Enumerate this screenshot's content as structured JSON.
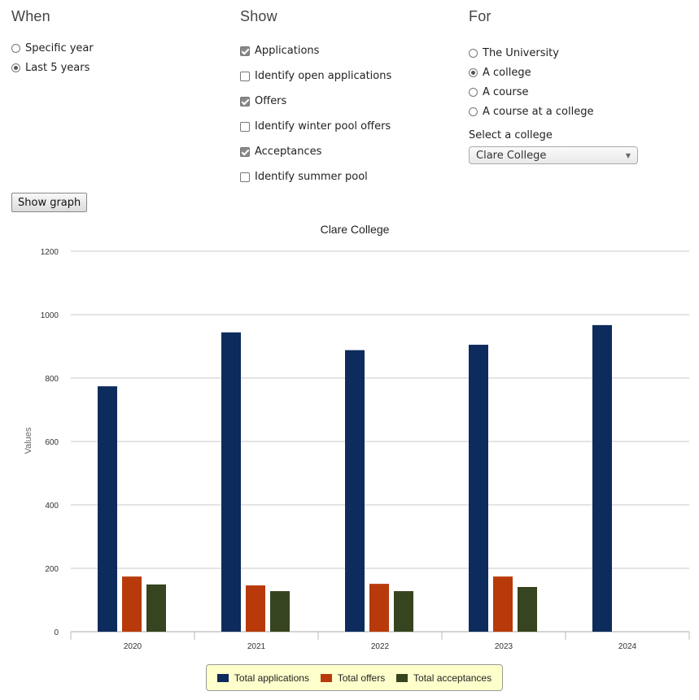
{
  "when": {
    "title": "When",
    "options": [
      {
        "label": "Specific year",
        "selected": false
      },
      {
        "label": "Last 5 years",
        "selected": true
      }
    ]
  },
  "show": {
    "title": "Show",
    "options": [
      {
        "label": "Applications",
        "checked": true
      },
      {
        "label": "Identify open applications",
        "checked": false
      },
      {
        "label": "Offers",
        "checked": true
      },
      {
        "label": "Identify winter pool offers",
        "checked": false
      },
      {
        "label": "Acceptances",
        "checked": true
      },
      {
        "label": "Identify summer pool",
        "checked": false
      }
    ]
  },
  "for": {
    "title": "For",
    "options": [
      {
        "label": "The University",
        "selected": false
      },
      {
        "label": "A college",
        "selected": true
      },
      {
        "label": "A course",
        "selected": false
      },
      {
        "label": "A course at a college",
        "selected": false
      }
    ],
    "select_label": "Select a college",
    "select_value": "Clare College"
  },
  "show_graph_label": "Show graph",
  "chart_data": {
    "type": "bar",
    "title": "Clare College",
    "ylabel": "Values",
    "xlabel": "",
    "ylim": [
      0,
      1200
    ],
    "yticks": [
      0,
      200,
      400,
      600,
      800,
      1000,
      1200
    ],
    "categories": [
      "2020",
      "2021",
      "2022",
      "2023",
      "2024"
    ],
    "series": [
      {
        "name": "Total applications",
        "color": "#0d2b5c",
        "values": [
          774,
          944,
          888,
          905,
          967
        ]
      },
      {
        "name": "Total offers",
        "color": "#b83a0b",
        "values": [
          174,
          146,
          151,
          174,
          0
        ]
      },
      {
        "name": "Total acceptances",
        "color": "#36441f",
        "values": [
          149,
          128,
          128,
          141,
          0
        ]
      }
    ],
    "grid": true,
    "legend_position": "bottom"
  }
}
